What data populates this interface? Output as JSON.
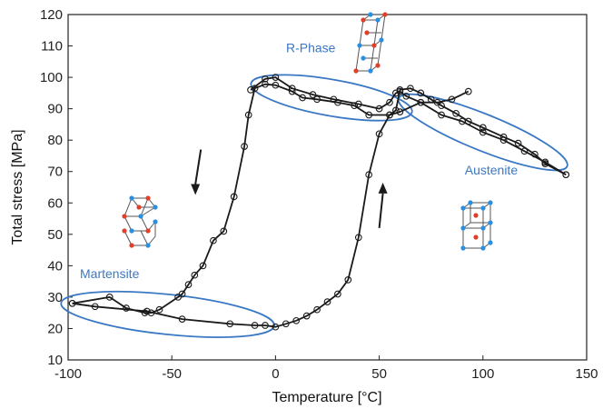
{
  "chart_data": {
    "type": "line",
    "title": "",
    "xlabel": "Temperature [°C]",
    "ylabel": "Total  stress [MPa]",
    "xlim": [
      -100,
      150
    ],
    "ylim": [
      10,
      120
    ],
    "xticks": [
      -100,
      -50,
      0,
      50,
      100,
      150
    ],
    "yticks": [
      10,
      20,
      30,
      40,
      50,
      60,
      70,
      80,
      90,
      100,
      110,
      120
    ],
    "grid": false,
    "legend": "none",
    "colors": {
      "curve": "#1a1a1a",
      "annotation": "#3a78c4",
      "atom_red": "#e0402a",
      "atom_blue": "#2a8fe0"
    },
    "series": [
      {
        "segment": "cooling",
        "points": [
          [
            93,
            95.5
          ],
          [
            85,
            93
          ],
          [
            78,
            92
          ],
          [
            70,
            92
          ],
          [
            60,
            89
          ],
          [
            55,
            88
          ],
          [
            45,
            88
          ],
          [
            38,
            91
          ],
          [
            30,
            92
          ],
          [
            20,
            93
          ],
          [
            13,
            93.5
          ],
          [
            8,
            95.5
          ],
          [
            0,
            97.5
          ],
          [
            -5,
            97.8
          ],
          [
            -10,
            96.5
          ],
          [
            -13,
            88
          ],
          [
            -15,
            78
          ],
          [
            -20,
            62
          ],
          [
            -25,
            51
          ],
          [
            -30,
            48
          ],
          [
            -35,
            40
          ],
          [
            -39,
            37
          ],
          [
            -42,
            34
          ],
          [
            -45,
            31
          ],
          [
            -47,
            30
          ],
          [
            -56,
            26
          ],
          [
            -60,
            25
          ],
          [
            -63,
            25
          ],
          [
            -72,
            26.5
          ],
          [
            -80,
            30
          ],
          [
            -98,
            28
          ]
        ]
      },
      {
        "segment": "heating",
        "points": [
          [
            -98,
            28
          ],
          [
            -87,
            27
          ],
          [
            -62,
            25.5
          ],
          [
            -45,
            23
          ],
          [
            -22,
            21.5
          ],
          [
            -10,
            21
          ],
          [
            -5,
            21
          ],
          [
            0,
            20.5
          ],
          [
            5,
            21.5
          ],
          [
            10,
            22.5
          ],
          [
            15,
            24
          ],
          [
            20,
            26
          ],
          [
            25,
            28.5
          ],
          [
            30,
            31
          ],
          [
            35,
            35.5
          ],
          [
            40,
            49
          ],
          [
            45,
            69
          ],
          [
            50,
            82
          ],
          [
            55,
            88
          ],
          [
            58,
            89.5
          ],
          [
            60,
            96
          ],
          [
            65,
            96.5
          ],
          [
            70,
            95
          ],
          [
            75,
            93
          ],
          [
            80,
            91
          ],
          [
            87,
            88.5
          ],
          [
            93,
            86
          ],
          [
            100,
            84
          ],
          [
            110,
            81
          ],
          [
            117,
            79
          ],
          [
            125,
            75.5
          ],
          [
            130,
            72.5
          ],
          [
            140,
            69
          ]
        ]
      },
      {
        "segment": "austenite-cooling",
        "points": [
          [
            140,
            69
          ],
          [
            130,
            73
          ],
          [
            120,
            76.5
          ],
          [
            110,
            80
          ],
          [
            100,
            82.5
          ],
          [
            90,
            86
          ],
          [
            80,
            88
          ],
          [
            70,
            92
          ],
          [
            63,
            94
          ],
          [
            60,
            95.5
          ],
          [
            58,
            95
          ],
          [
            55,
            92
          ],
          [
            50,
            90
          ],
          [
            40,
            91.5
          ],
          [
            28,
            93
          ],
          [
            18,
            94.5
          ],
          [
            8,
            96.5
          ],
          [
            0,
            100
          ],
          [
            -5,
            99.5
          ],
          [
            -12,
            96
          ]
        ]
      }
    ],
    "annotations": [
      {
        "label": "R-Phase",
        "x": 17,
        "y": 108
      },
      {
        "label": "Martensite",
        "x": -80,
        "y": 36
      },
      {
        "label": "Austenite",
        "x": 104,
        "y": 69
      }
    ],
    "arrows": [
      {
        "direction": "down",
        "x": -36,
        "y_from": 77,
        "y_to": 66
      },
      {
        "direction": "up",
        "x": 50,
        "y_from": 52,
        "y_to": 63
      }
    ]
  }
}
